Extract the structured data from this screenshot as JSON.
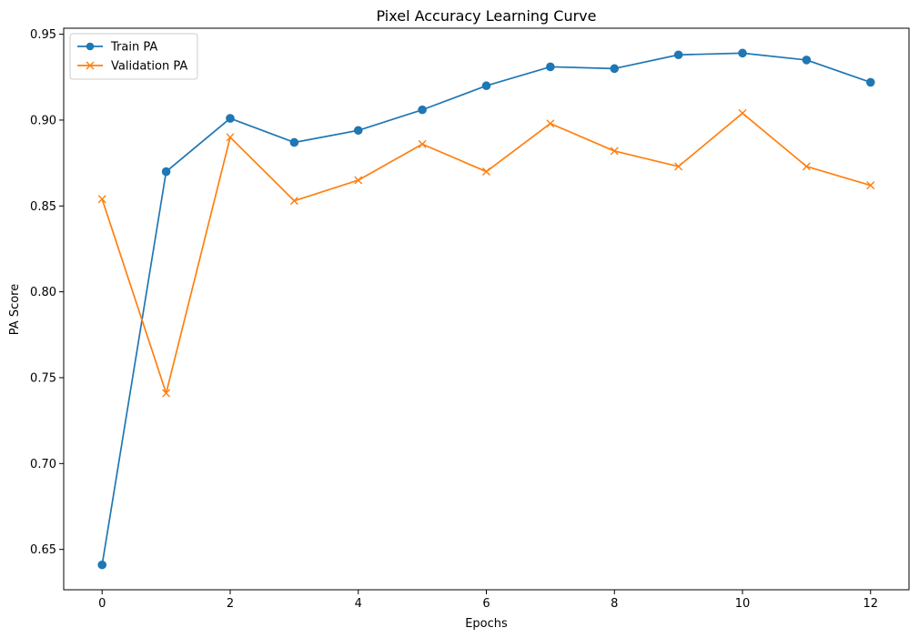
{
  "chart_data": {
    "type": "line",
    "title": "Pixel Accuracy Learning Curve",
    "xlabel": "Epochs",
    "ylabel": "PA Score",
    "x": [
      0,
      1,
      2,
      3,
      4,
      5,
      6,
      7,
      8,
      9,
      10,
      11,
      12
    ],
    "xlim": [
      -0.6,
      12.6
    ],
    "ylim": [
      0.6265,
      0.9535
    ],
    "xticks": [
      0,
      2,
      4,
      6,
      8,
      10,
      12
    ],
    "xtick_labels": [
      "0",
      "2",
      "4",
      "6",
      "8",
      "10",
      "12"
    ],
    "yticks": [
      0.65,
      0.7,
      0.75,
      0.8,
      0.85,
      0.9,
      0.95
    ],
    "ytick_labels": [
      "0.65",
      "0.70",
      "0.75",
      "0.80",
      "0.85",
      "0.90",
      "0.95"
    ],
    "grid": false,
    "legend_position": "upper-left",
    "series": [
      {
        "name": "Train PA",
        "marker": "circle",
        "color": "#1f77b4",
        "values": [
          0.641,
          0.87,
          0.901,
          0.887,
          0.894,
          0.906,
          0.92,
          0.931,
          0.93,
          0.938,
          0.939,
          0.935,
          0.922
        ]
      },
      {
        "name": "Validation PA",
        "marker": "x",
        "color": "#ff7f0e",
        "values": [
          0.854,
          0.741,
          0.89,
          0.853,
          0.865,
          0.886,
          0.87,
          0.898,
          0.882,
          0.873,
          0.904,
          0.873,
          0.862
        ]
      }
    ]
  }
}
